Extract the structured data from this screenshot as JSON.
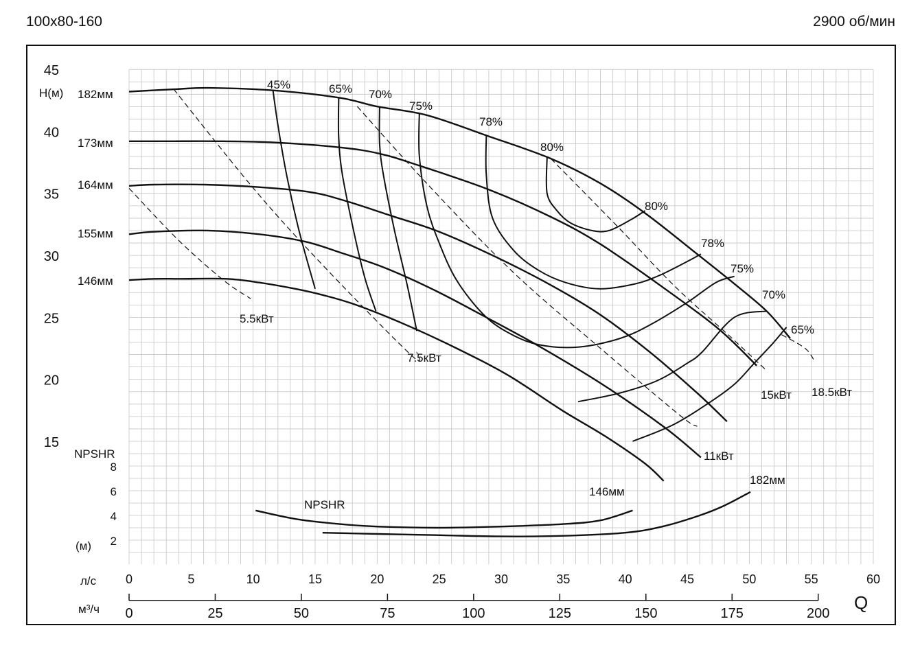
{
  "header": {
    "model": "100x80-160",
    "speed": "2900 об/мин"
  },
  "chart_data": {
    "type": "line",
    "title": "",
    "head_axis": {
      "label": "H(м)",
      "range": [
        15,
        45
      ],
      "ticks": [
        15,
        20,
        25,
        30,
        35,
        40,
        45
      ]
    },
    "npshr_axis": {
      "label": "NPSHR",
      "unit": "(м)",
      "range": [
        0,
        10
      ],
      "ticks": [
        2,
        4,
        6,
        8
      ]
    },
    "flow_axis_ls": {
      "label": "л/с",
      "range": [
        0,
        60
      ],
      "ticks": [
        0,
        5,
        10,
        15,
        20,
        25,
        30,
        35,
        40,
        45,
        50,
        55,
        60
      ]
    },
    "flow_axis_m3h": {
      "label": "м³/ч",
      "range": [
        0,
        200
      ],
      "ticks": [
        0,
        25,
        50,
        75,
        100,
        125,
        150,
        175,
        200
      ]
    },
    "q_label": "Q",
    "impeller_curves": [
      {
        "name": "182мм",
        "points": [
          [
            0,
            43.2
          ],
          [
            3.8,
            43.4
          ],
          [
            6.4,
            43.5
          ],
          [
            11.6,
            43.3
          ],
          [
            17,
            42.7
          ],
          [
            20,
            42.0
          ],
          [
            24,
            41.3
          ],
          [
            29,
            39.6
          ],
          [
            34,
            37.8
          ],
          [
            38,
            35.8
          ],
          [
            41.6,
            33.4
          ],
          [
            45.8,
            30.1
          ],
          [
            48.8,
            27.7
          ],
          [
            51.4,
            25.5
          ],
          [
            53.3,
            23.3
          ]
        ]
      },
      {
        "name": "173мм",
        "points": [
          [
            0,
            39.2
          ],
          [
            3,
            39.2
          ],
          [
            7.5,
            39.2
          ],
          [
            11.7,
            39.1
          ],
          [
            17,
            38.7
          ],
          [
            20.2,
            38.2
          ],
          [
            23.2,
            37.3
          ],
          [
            29,
            35.3
          ],
          [
            34,
            33.1
          ],
          [
            38,
            30.9
          ],
          [
            43.2,
            27.3
          ],
          [
            47.6,
            24.0
          ],
          [
            50.6,
            21.1
          ]
        ]
      },
      {
        "name": "164мм",
        "points": [
          [
            0,
            35.6
          ],
          [
            2,
            35.7
          ],
          [
            6.1,
            35.7
          ],
          [
            10.4,
            35.5
          ],
          [
            14.6,
            35.1
          ],
          [
            17.4,
            34.4
          ],
          [
            21.1,
            33.2
          ],
          [
            25,
            31.9
          ],
          [
            29.5,
            29.9
          ],
          [
            34,
            27.6
          ],
          [
            38,
            25.2
          ],
          [
            42.1,
            22.1
          ],
          [
            45.9,
            18.8
          ],
          [
            48.2,
            16.6
          ]
        ]
      },
      {
        "name": "155мм",
        "points": [
          [
            0,
            31.7
          ],
          [
            2,
            31.9
          ],
          [
            6.3,
            32.0
          ],
          [
            10.5,
            31.7
          ],
          [
            14.2,
            31.1
          ],
          [
            17.1,
            30.2
          ],
          [
            20.6,
            29.0
          ],
          [
            24.6,
            27.2
          ],
          [
            28.6,
            25.1
          ],
          [
            33,
            22.7
          ],
          [
            38.3,
            19.5
          ],
          [
            43.2,
            16.1
          ],
          [
            46.1,
            13.7
          ]
        ]
      },
      {
        "name": "146мм",
        "points": [
          [
            0,
            28.0
          ],
          [
            2,
            28.1
          ],
          [
            4.2,
            28.1
          ],
          [
            7.9,
            28.1
          ],
          [
            10.5,
            27.8
          ],
          [
            13.4,
            27.3
          ],
          [
            15.6,
            26.8
          ],
          [
            18.3,
            26.0
          ],
          [
            22.3,
            24.4
          ],
          [
            26.4,
            22.5
          ],
          [
            30.6,
            20.3
          ],
          [
            34.9,
            17.5
          ],
          [
            38.4,
            15.4
          ],
          [
            41.6,
            13.2
          ],
          [
            43.1,
            11.8
          ]
        ]
      }
    ],
    "efficiency_curves": [
      {
        "name": "45%",
        "points": [
          [
            11.6,
            43.3
          ],
          [
            12.0,
            40.5
          ],
          [
            12.7,
            36.5
          ],
          [
            13.7,
            32.0
          ],
          [
            15.0,
            27.3
          ]
        ]
      },
      {
        "name": "65%",
        "points": [
          [
            16.9,
            42.7
          ],
          [
            16.9,
            39.5
          ],
          [
            17.2,
            36.5
          ],
          [
            18.1,
            32.0
          ],
          [
            19.0,
            28.2
          ],
          [
            19.9,
            25.5
          ]
        ]
      },
      {
        "name": "70%",
        "points": [
          [
            20.2,
            42.0
          ],
          [
            20.2,
            39.0
          ],
          [
            20.5,
            36.5
          ],
          [
            21.4,
            32.0
          ],
          [
            22.4,
            27.7
          ],
          [
            23.2,
            23.9
          ]
        ]
      },
      {
        "name": "75%",
        "points": [
          [
            23.4,
            41.5
          ],
          [
            23.4,
            38.0
          ],
          [
            24.0,
            34.0
          ],
          [
            25.0,
            31.0
          ],
          [
            26.4,
            28.0
          ],
          [
            28.5,
            25.3
          ],
          [
            30.5,
            23.8
          ],
          [
            33.0,
            22.8
          ],
          [
            36.2,
            22.6
          ],
          [
            39.6,
            23.3
          ],
          [
            42.2,
            24.5
          ],
          [
            45.0,
            26.2
          ],
          [
            47.3,
            27.8
          ],
          [
            48.8,
            28.3
          ]
        ]
      },
      {
        "name": "78%",
        "points": [
          [
            28.8,
            39.6
          ],
          [
            28.8,
            36.5
          ],
          [
            29.3,
            33.0
          ],
          [
            31.0,
            30.4
          ],
          [
            33.0,
            28.8
          ],
          [
            35.2,
            27.8
          ],
          [
            37.9,
            27.3
          ],
          [
            40.8,
            27.7
          ],
          [
            42.8,
            28.4
          ],
          [
            45.0,
            29.5
          ],
          [
            46.1,
            30.1
          ]
        ]
      },
      {
        "name": "80%",
        "points": [
          [
            33.7,
            37.9
          ],
          [
            33.7,
            35.0
          ],
          [
            34.5,
            33.6
          ],
          [
            35.6,
            32.6
          ],
          [
            37.3,
            32.0
          ],
          [
            38.7,
            32.0
          ],
          [
            40.5,
            32.9
          ],
          [
            41.6,
            33.6
          ]
        ]
      }
    ],
    "efficiency_lower_segments": [
      {
        "name": "78%",
        "points": [
          [
            36.2,
            18.2
          ],
          [
            39.6,
            18.9
          ],
          [
            42.6,
            19.9
          ],
          [
            45.0,
            21.3
          ],
          [
            46.2,
            22.2
          ],
          [
            48.8,
            25.0
          ],
          [
            51.4,
            25.5
          ]
        ]
      },
      {
        "name": "70%",
        "points": [
          [
            40.6,
            15.0
          ],
          [
            43.8,
            16.3
          ],
          [
            46.6,
            18.0
          ],
          [
            48.8,
            19.6
          ],
          [
            50.4,
            21.3
          ],
          [
            51.9,
            22.9
          ],
          [
            53.0,
            24.2
          ]
        ]
      }
    ],
    "power_curves": [
      {
        "name": "5.5кВт",
        "points": [
          [
            0,
            35.4
          ],
          [
            4.0,
            31.2
          ],
          [
            7.6,
            28.0
          ],
          [
            9.8,
            26.5
          ]
        ]
      },
      {
        "name": "7.5кВт",
        "points": [
          [
            3.6,
            43.4
          ],
          [
            10.2,
            35.2
          ],
          [
            16.0,
            28.8
          ],
          [
            22.8,
            21.9
          ],
          [
            23.2,
            22.2
          ]
        ]
      },
      {
        "name": "11кВт",
        "points": [
          [
            18.4,
            42.0
          ],
          [
            24.0,
            35.8
          ],
          [
            31.0,
            28.6
          ],
          [
            38.0,
            22.5
          ],
          [
            44.4,
            17.1
          ],
          [
            45.8,
            16.2
          ]
        ]
      },
      {
        "name": "15кВт",
        "points": [
          [
            34.0,
            37.8
          ],
          [
            39.4,
            32.3
          ],
          [
            44.0,
            27.5
          ],
          [
            48.4,
            23.5
          ],
          [
            51.4,
            20.7
          ]
        ]
      },
      {
        "name": "18.5кВт",
        "points": [
          [
            52.6,
            23.6
          ],
          [
            54.5,
            22.5
          ],
          [
            55.3,
            21.4
          ]
        ]
      }
    ],
    "npshr_curves": [
      {
        "name": "146мм",
        "points": [
          [
            10.2,
            4.4
          ],
          [
            13.5,
            3.7
          ],
          [
            17,
            3.3
          ],
          [
            20,
            3.1
          ],
          [
            25,
            3.0
          ],
          [
            30,
            3.1
          ],
          [
            35,
            3.3
          ],
          [
            38,
            3.6
          ],
          [
            40.6,
            4.4
          ]
        ]
      },
      {
        "name": "182мм",
        "points": [
          [
            15.6,
            2.6
          ],
          [
            20,
            2.5
          ],
          [
            25,
            2.4
          ],
          [
            30,
            2.3
          ],
          [
            35,
            2.35
          ],
          [
            40,
            2.6
          ],
          [
            43,
            3.1
          ],
          [
            46,
            4.0
          ],
          [
            48,
            4.8
          ],
          [
            50.1,
            5.9
          ]
        ]
      }
    ],
    "npshr_label": "NPSHR",
    "efficiency_right_labels": [
      "80%",
      "78%",
      "75%",
      "70%",
      "65%"
    ]
  }
}
